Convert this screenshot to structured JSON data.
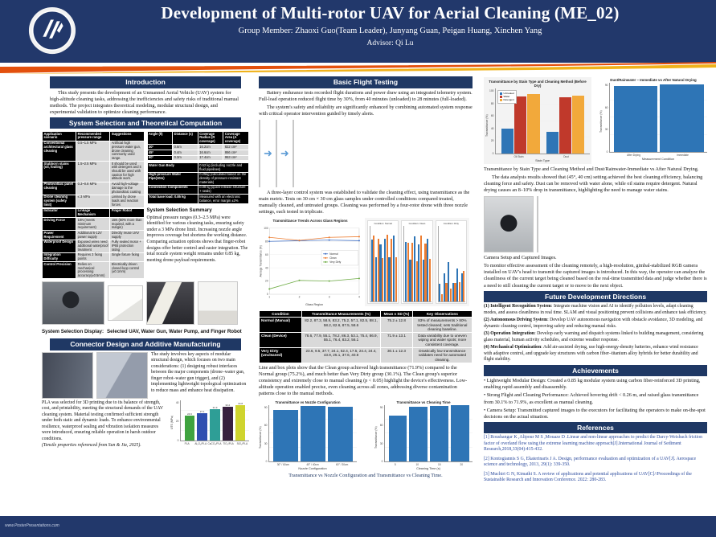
{
  "header": {
    "title": "Development of Multi-rotor UAV for Aerial Cleaning (ME_02)",
    "members": "Group Member: Zhaoxi Guo(Team Leader), Junyang Guan, Peigan Huang, Xinchen Yang",
    "advisor": "Advisor: Qi Lu"
  },
  "footer": {
    "url": "www.PosterPresentations.com"
  },
  "icons": {
    "arrow_right": "➜"
  },
  "left": {
    "intro_title": "Introduction",
    "intro_text": "This study presents the development of an Unmanned Aerial Vehicle (UAV) system for high-altitude cleaning tasks, addressing the inefficiencies and safety risks of traditional manual methods. The project integrates theoretical modeling, modular structural design, and experimental validation to optimize cleaning performance.",
    "system_title": "System Selection and Theoretical Computation",
    "pressure_table": {
      "header": [
        "Application scenario",
        "Recommended pressure range",
        "Suggestions"
      ],
      "rows": [
        [
          "Conventional architectural glass cleaning",
          "0.5~1.5 MPa",
          "Artificial high pressure water gun, drone cleaning commonly used range."
        ],
        [
          "Stubborn stains (oil, fouling)",
          "1.5~2.5 MPa",
          "It should be used with detergent and it should be used with caution for high altitude work."
        ],
        [
          "Photovoltaic panel cleaning",
          "0.3~0.8 MPa",
          "Avoid high-voltage damage to the photovoltaic coating"
        ],
        [
          "Drone cleaning system (safety limit)",
          "≤ 3 MPa",
          "Limited by drone loads and reaction forces"
        ]
      ]
    },
    "indicator_table": {
      "header": [
        "Indicator",
        "Linkage Mechanism",
        "Finger Robot"
      ],
      "rows": [
        [
          "Driving Force",
          "10N (meets minimum requirement)",
          "15N (50% more than required, with a margin)"
        ],
        [
          "Power Requirement",
          "Additional 6-12V power supply",
          "Directly reuse UAV supply"
        ],
        [
          "Waterproof Design",
          "Exposed wires need additional waterproof treatment",
          "Fully sealed motor + IP65 protection rating"
        ],
        [
          "Integration Difficulty",
          "Requires 3 fixing points",
          "Single fixture fixing"
        ],
        [
          "Control Precision",
          "Relies on mechanical processing accuracy(±0.5mm)",
          "Electrically driven closed-loop control (±0.1mm)"
        ]
      ]
    },
    "angle_table": {
      "header": [
        "Angle (θ)",
        "Distance (s)",
        "Coverage Radius (R coverage)",
        "Coverage Area (A coverage)"
      ],
      "rows": [
        [
          "30°",
          "0.6m",
          "16.2cm",
          "822 cm²"
        ],
        [
          "45°",
          "0.4m",
          "16.6cm",
          "866 cm²"
        ],
        [
          "60°",
          "0.3m",
          "17.4cm",
          "953 cm²"
        ]
      ]
    },
    "weight_table": {
      "rows": [
        [
          "Water Gun Body",
          "0.52 kg (including nozzle and fluid pipelines)"
        ],
        [
          "High-pressure Water Pipe(10m)",
          "0.25kg (calculated based on the density of pressure-resistant materials)"
        ],
        [
          "Connection Components",
          "0.08 kg (quick-release structure + seals)"
        ],
        [
          "Total base load: 0.85 kg",
          "Measured with an electronic balance, error margin ±2%"
        ]
      ]
    },
    "summary_title": "System Selection Summary",
    "summary_text": "Optimal pressure ranges (0.3–2.5 MPa) were identified for various cleaning tasks, ensuring safety under a 3 MPa drone limit. Increasing nozzle angle improves coverage but shortens the working distance. Comparing actuation options shows that finger-robot designs offer better control and easier integration. The total nozzle system weight remains under 0.85 kg, meeting drone payload requirements.",
    "display_title": "System Selection Display:",
    "display_text": "Selected UAV, Water Gun, Water Pump, and Finger Robot",
    "connector_title": "Connector Design and Additive Manufacturing",
    "connector_right_text": "The study involves key aspects of modular structural design, which focuses on two main considerations: (1) designing robust interfaces between the major components (drone–water gun, finger robot–water gun trigger), and (2) implementing lightweight topological optimization to reduce mass and enhance heat dissipation.",
    "connector_left_text": "PLA was selected for 3D printing due to its balance of strength, cost, and printability, meeting the structural demands of the UAV cleaning system. Material testing confirmed sufficient strength under both static and dynamic loads. To enhance environmental resilience, waterproof sealing and vibration isolation measures were introduced, ensuring reliable operation in harsh outdoor conditions.",
    "connector_ref_note": "(Tensile properties referenced from Sun & Jia, 2025)."
  },
  "middle": {
    "flight_title": "Basic Flight Testing",
    "p1": "Battery endurance tests recorded flight durations and power draw using an integrated telemetry system. Full-load operation reduced flight time by 30%, from 40 minutes (unloaded) to 28 minutes (full-loaded).",
    "p2": "The system's safety and reliability are significantly enhanced by combining automated system response with critical operator intervention guided by timely alerts.",
    "p3": "A three-layer control system was established to validate the cleaning effect, using transmittance as the main metric. Tests on 30 cm × 30 cm glass samples under controlled conditions compared treated, manually cleaned, and untreated groups. Cleaning was performed by a four-rotor drone with three nozzle settings, each tested in triplicate.",
    "condition_table": {
      "header": [
        "Condition",
        "Transmittance Measurements (%)",
        "Mean ± SD (%)",
        "Key Observations"
      ],
      "rows": [
        [
          "Normal (Manual)",
          "82.2, 87.3, 58.9, 83.2, 75.2, 57.1, 82.5, 88.1, 58.2, 82.6, 87.5, 58.6",
          "75.2 ± 12.8",
          "83% of measurements > 80% tested cleaned; sets traditional cleaning baseline."
        ],
        [
          "Clean (Device)",
          "78.6, 77.9, 55.1, 78.2, 86.3, 53.1, 75.4, 86.9, 55.1, 76.4, 83.2, 56.1",
          "71.9 ± 13.1",
          "Data variability due to uneven wiping and water spots; more consistent coverage."
        ],
        [
          "Very Dirty (Uncleaned)",
          "23.6, 9.5, 37.7, 24.1, 52.4, 17.5, 24.4, 24.4, 43.9, 25.1, 37.6, 40.8",
          "30.1 ± 12.3",
          "Drastically low transmittance validates need for automated cleaning."
        ]
      ]
    },
    "p4": "Line and box plots show that the Clean group achieved high transmittance (71.9%) compared to the Normal group (75.2%), and much better than Very Dirty group (30.1%). The Clean group's superior consistency and extremely close to manual cleaning (p < 0.05) highlight the device's effectiveness. Low-altitude operation enabled precise, even cleaning across all zones, addressing diverse contamination patterns close to the manual methods.",
    "caption": "Transmittance vs Nozzle Configuration and Transmittance vs Cleaning Time."
  },
  "right": {
    "caption1": "Transmittance by Stain Type and Cleaning Method and Dust/Rainwater-Immediate vs After Natural Drying.",
    "p1": "The data analysis results showed that (45°, 40 cm) setting achieved the best cleaning efficiency, balancing cleaning force and safety. Dust can be removed with water alone, while oil stains require detergent. Natural drying causes an 8–10% drop in transmittance, highlighting the need to manage water stains.",
    "camera_caption": "Camera Setup and Captured Images.",
    "camera_text": "To monitor effective assessment of the cleaning remotely, a high-resolution, gimbal-stabilized RGB camera installed on UAV's head to transmit the captured images is introduced. In this way, the operator can analyze the cleanliness of the current target being cleaned based on the real-time transmitted data and judge whether there is a need to still cleaning the current target or to move to the next object.",
    "future_title": "Future Development Directions",
    "future_items": [
      {
        "lead": "(1) Intelligent Recognition System",
        "text": ": Integrate machine vision and AI to identify pollution levels, adapt cleaning modes, and assess cleanliness in real time. SLAM and visual positioning prevent collisions and enhance task efficiency."
      },
      {
        "lead": "(2) Autonomous Driving System",
        "text": ": Develop UAV autonomous navigation with obstacle avoidance, 3D modeling, and dynamic cleaning control, improving safety and reducing manual risks."
      },
      {
        "lead": "(3) Operation Integration",
        "text": ": Develop early warning and dispatch systems linked to building management, considering glass material, human activity schedules, and extreme weather response."
      },
      {
        "lead": "(4) Mechanical Optimization",
        "text": ": Add air-assisted drying, use high-energy-density batteries, enhance wind resistance with adaptive control, and upgrade key structures with carbon fiber–titanium alloy hybrids for better durability and flight stability."
      }
    ],
    "achievements_title": "Achievements",
    "achievements": [
      "• Lightweight Modular Design: Created a 0.85 kg modular system using carbon fiber-reinforced 3D printing, enabling rapid assembly and disassembly.",
      "• Strong Flight and Cleaning Performance: Achieved hovering drift < 0.26 m, and raised glass transmittance from 30.1% to 71.9%, as excellent as manual cleaning.",
      "• Camera Setup: Transmitted captured images to the executors for facilitating the operators to make on-the-spot decisions on the actual situation."
    ],
    "references_title": "References",
    "references": [
      "[1] Roushangar K ,Alipour M S ,Mouaze D .Linear and non-linear approaches to predict the Darcy-Weisbach friction factor of overland flow using the extreme learning machine approach[J].International Journal of Sediment Research,2018,33(04):415-432.",
      "[2] Kontogiannis S G, Ekaterinaris J A. Design, performance evaluation and optimization of a UAV[J]. Aerospace science and technology, 2013, 29(1): 339-350.",
      "[3] Muchiri G N, Kimathi S. A review of applications and potential applications of UAV[C]//Proceedings of the Sustainable Research and Innovation Conference. 2022: 280-283."
    ]
  },
  "chart_data": [
    {
      "id": "tensile",
      "type": "bar",
      "title": "",
      "categories": [
        "PLA",
        "Al₂O₃/PLA",
        "CaCO₃/PLA",
        "TiO₂/PLA",
        "SiO₂/PLA"
      ],
      "values": [
        24.9,
        27.1,
        31.3,
        33.2,
        34.8
      ],
      "colors": [
        "#3fa33f",
        "#2f4fb0",
        "#2e9e96",
        "#37203f",
        "#cfd42e"
      ],
      "show_values": true,
      "ylabel": "UTS (MPa)",
      "ylim": [
        0,
        40
      ],
      "yticks": [
        0,
        20,
        40
      ]
    },
    {
      "id": "trends",
      "type": "line",
      "title": "Transmittance Trends Across Glass Regions",
      "x": [
        1,
        2,
        3,
        4
      ],
      "series": [
        {
          "name": "Normal",
          "color": "#4472c4",
          "values": [
            80,
            81,
            82,
            81
          ]
        },
        {
          "name": "Clean",
          "color": "#ed7d31",
          "values": [
            86,
            81.5,
            86,
            87
          ]
        },
        {
          "name": "Very Dirty",
          "color": "#70ad47",
          "values": [
            8,
            21,
            20,
            24
          ]
        }
      ],
      "xlabel": "Glass Region",
      "ylabel": "Average Transmittance (%)",
      "ylim": [
        0,
        100
      ],
      "yticks": [
        0,
        20,
        40,
        60,
        80,
        100
      ]
    },
    {
      "id": "zones",
      "type": "panels",
      "colors": [
        "#2e75b6",
        "#ed7d31"
      ],
      "panels": [
        {
          "title": "Condition: Normal",
          "values": [
            82.2,
            87.3,
            58.9,
            83.2,
            75.2,
            57.1,
            82.5,
            88.1,
            58.2,
            82.6,
            87.5,
            58.6
          ]
        },
        {
          "title": "Condition: Clean",
          "values": [
            78.6,
            77.9,
            55.1,
            78.2,
            86.3,
            53.1,
            75.4,
            86.9,
            55.1,
            76.4,
            83.2,
            56.1
          ]
        },
        {
          "title": "Condition: Dirty",
          "values": [
            23.6,
            9.5,
            37.7,
            24.1,
            52.4,
            17.5,
            24.4,
            24.4,
            43.9,
            25.1,
            37.6,
            40.8
          ]
        }
      ]
    },
    {
      "id": "nozzle",
      "type": "bar",
      "title": "Transmittance vs Nozzle Configuration",
      "categories": [
        "30° / 60cm",
        "45° / 40cm",
        "60° / 30cm"
      ],
      "values": [
        82,
        89,
        88
      ],
      "color": "#2e75b6",
      "xlabel": "Nozzle Configuration",
      "ylabel": "Transmittance (%)",
      "ylim": [
        0,
        90
      ],
      "yticks": [
        0,
        30,
        60,
        90
      ]
    },
    {
      "id": "time",
      "type": "bar",
      "title": "Transmittance vs Cleaning Time",
      "categories": [
        "5",
        "10",
        "15",
        "20"
      ],
      "values": [
        74,
        88,
        89,
        90
      ],
      "color": "#2e75b6",
      "xlabel": "Cleaning Time (s)",
      "ylabel": "Transmittance (%)",
      "ylim": [
        0,
        90
      ],
      "yticks": [
        0,
        30,
        60,
        90
      ]
    },
    {
      "id": "stain",
      "type": "groupbar",
      "title": "Transmittance by Stain Type and Cleaning Method (Before Dry)",
      "categories": [
        "Oil Stain",
        "Dust"
      ],
      "series": [
        {
          "name": "Untreated",
          "color": "#2e75b6",
          "values": [
            38,
            33
          ]
        },
        {
          "name": "Water",
          "color": "#c0392b",
          "values": [
            88,
            86
          ]
        },
        {
          "name": "Detergent",
          "color": "#f2a93b",
          "values": [
            91,
            89
          ]
        }
      ],
      "xlabel": "Stain Type",
      "ylabel": "Transmittance (%)",
      "ylim": [
        0,
        100
      ],
      "yticks": [
        0,
        20,
        40,
        60,
        80,
        100
      ]
    },
    {
      "id": "drying",
      "type": "bar",
      "title": "Dust/Rainwater – Immediate vs After Natural Drying",
      "categories": [
        "After Drying",
        "Immediate"
      ],
      "values": [
        86,
        88
      ],
      "color": "#2e75b6",
      "xlabel": "Measurement Condition",
      "ylabel": "Transmittance (%)",
      "ylim": [
        0,
        90
      ],
      "yticks": [
        0,
        30,
        60,
        90
      ]
    }
  ]
}
